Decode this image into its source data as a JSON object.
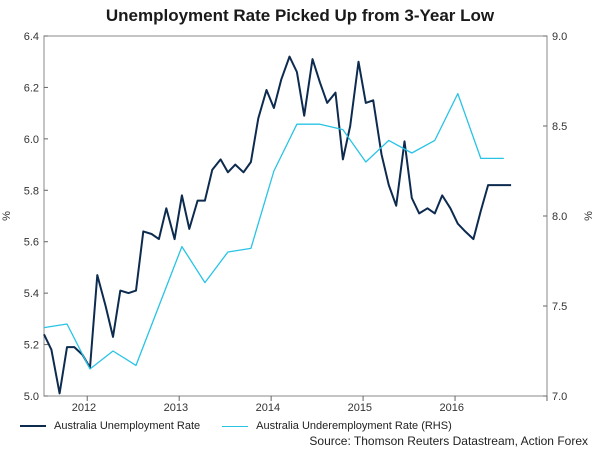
{
  "chart_data": {
    "type": "line",
    "title": "Unemployment Rate Picked Up from 3-Year Low",
    "ylabel_left": "%",
    "ylabel_right": "%",
    "ylim_left": [
      5.0,
      6.4
    ],
    "ylim_right": [
      7.0,
      9.0
    ],
    "yticks_left": [
      "5.0",
      "5.2",
      "5.4",
      "5.6",
      "5.8",
      "6.0",
      "6.2",
      "6.4"
    ],
    "yticks_right": [
      "7.0",
      "7.5",
      "8.0",
      "8.5",
      "9.0"
    ],
    "xlim": [
      2011.5,
      2016.97
    ],
    "xticks": [
      "2012",
      "2013",
      "2014",
      "2015",
      "2016"
    ],
    "series": [
      {
        "name": "Australia Unemployment Rate",
        "axis": "left",
        "color": "#0d2b4f",
        "x": [
          2011.5,
          2011.58,
          2011.67,
          2011.75,
          2011.83,
          2011.92,
          2012.0,
          2012.08,
          2012.17,
          2012.25,
          2012.33,
          2012.42,
          2012.5,
          2012.58,
          2012.67,
          2012.75,
          2012.83,
          2012.92,
          2013.0,
          2013.08,
          2013.17,
          2013.25,
          2013.33,
          2013.42,
          2013.5,
          2013.58,
          2013.67,
          2013.75,
          2013.83,
          2013.92,
          2014.0,
          2014.08,
          2014.17,
          2014.25,
          2014.33,
          2014.42,
          2014.5,
          2014.58,
          2014.67,
          2014.75,
          2014.83,
          2014.92,
          2015.0,
          2015.08,
          2015.17,
          2015.25,
          2015.33,
          2015.42,
          2015.5,
          2015.58,
          2015.67,
          2015.75,
          2015.83,
          2015.92,
          2016.0,
          2016.08,
          2016.17,
          2016.25,
          2016.33,
          2016.42,
          2016.5,
          2016.58
        ],
        "values": [
          5.24,
          5.18,
          5.01,
          5.19,
          5.19,
          5.16,
          5.11,
          5.47,
          5.35,
          5.23,
          5.41,
          5.4,
          5.41,
          5.64,
          5.63,
          5.61,
          5.73,
          5.61,
          5.78,
          5.65,
          5.76,
          5.76,
          5.88,
          5.92,
          5.87,
          5.9,
          5.87,
          5.91,
          6.08,
          6.19,
          6.12,
          6.23,
          6.32,
          6.26,
          6.09,
          6.31,
          6.22,
          6.14,
          6.18,
          5.92,
          6.05,
          6.3,
          6.14,
          6.15,
          5.94,
          5.82,
          5.74,
          5.99,
          5.77,
          5.71,
          5.73,
          5.71,
          5.78,
          5.73,
          5.67,
          5.64,
          5.61,
          5.72,
          5.82,
          5.82,
          5.82,
          5.82
        ]
      },
      {
        "name": "Australia Underemployment Rate (RHS)",
        "axis": "right",
        "color": "#29c3e6",
        "x": [
          2011.5,
          2011.75,
          2012.0,
          2012.25,
          2012.5,
          2012.75,
          2013.0,
          2013.25,
          2013.5,
          2013.75,
          2014.0,
          2014.25,
          2014.5,
          2014.75,
          2015.0,
          2015.25,
          2015.5,
          2015.75,
          2016.0,
          2016.25,
          2016.5
        ],
        "values": [
          7.38,
          7.4,
          7.15,
          7.25,
          7.17,
          7.5,
          7.83,
          7.63,
          7.8,
          7.82,
          8.25,
          8.51,
          8.51,
          8.48,
          8.3,
          8.42,
          8.35,
          8.42,
          8.68,
          8.32,
          8.32
        ]
      }
    ]
  },
  "legend": {
    "item_1": "Australia Unemployment Rate",
    "item_2": "Australia Underemployment Rate (RHS)"
  },
  "source": "Source: Thomson Reuters Datastream, Action Forex"
}
